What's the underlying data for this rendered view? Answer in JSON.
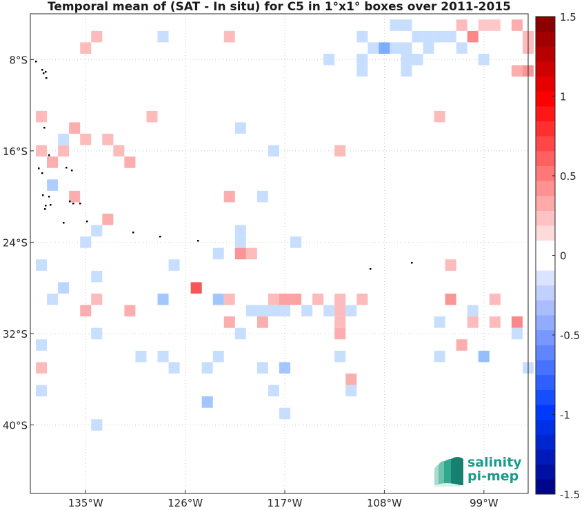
{
  "title": "Temporal mean of (SAT - In situ) for C5 in 1°x1° boxes over 2011-2015",
  "logo": {
    "line1": "salinity",
    "line2": "pi-mep"
  },
  "map": {
    "lon_range": [
      -140,
      -95
    ],
    "lat_range": [
      -46,
      -4
    ],
    "lon_ticks": [
      {
        "v": -135,
        "label": "135°W"
      },
      {
        "v": -126,
        "label": "126°W"
      },
      {
        "v": -117,
        "label": "117°W"
      },
      {
        "v": -108,
        "label": "108°W"
      },
      {
        "v": -99,
        "label": "99°W"
      }
    ],
    "lat_ticks": [
      {
        "v": -8,
        "label": "8°S"
      },
      {
        "v": -16,
        "label": "16°S"
      },
      {
        "v": -24,
        "label": "24°S"
      },
      {
        "v": -32,
        "label": "32°S"
      },
      {
        "v": -40,
        "label": "40°S"
      }
    ],
    "gridlines": true
  },
  "colorbar": {
    "range": [
      -1.5,
      1.5
    ],
    "levels": 32,
    "ticks": [
      "1.5",
      "1",
      "0.5",
      "0",
      "-0.5",
      "-1",
      "-1.5"
    ],
    "tick_values": [
      1.5,
      1,
      0.5,
      0,
      -0.5,
      -1,
      -1.5
    ]
  },
  "chart_data": {
    "type": "heatmap",
    "title": "Temporal mean of (SAT - In situ) for C5 in 1°x1° boxes over 2011-2015",
    "units": "",
    "boxes": [
      {
        "lon": -107,
        "lat": -5,
        "v": -0.1
      },
      {
        "lon": -106,
        "lat": -5,
        "v": -0.1
      },
      {
        "lon": -101,
        "lat": -5,
        "v": 0.15
      },
      {
        "lon": -99,
        "lat": -5,
        "v": 0.1
      },
      {
        "lon": -98,
        "lat": -5,
        "v": 0.1
      },
      {
        "lon": -96,
        "lat": -5,
        "v": 0.2
      },
      {
        "lon": -134,
        "lat": -6,
        "v": 0.15
      },
      {
        "lon": -128,
        "lat": -6,
        "v": -0.1
      },
      {
        "lon": -122,
        "lat": -6,
        "v": 0.15
      },
      {
        "lon": -110,
        "lat": -6,
        "v": -0.1
      },
      {
        "lon": -105,
        "lat": -6,
        "v": -0.1
      },
      {
        "lon": -104,
        "lat": -6,
        "v": -0.1
      },
      {
        "lon": -103,
        "lat": -6,
        "v": -0.1
      },
      {
        "lon": -102,
        "lat": -6,
        "v": -0.1
      },
      {
        "lon": -100,
        "lat": -6,
        "v": 0.35
      },
      {
        "lon": -95,
        "lat": -6,
        "v": 0.15
      },
      {
        "lon": -135,
        "lat": -7,
        "v": 0.15
      },
      {
        "lon": -109,
        "lat": -7,
        "v": -0.1
      },
      {
        "lon": -108,
        "lat": -7,
        "v": -0.4
      },
      {
        "lon": -107,
        "lat": -7,
        "v": -0.1
      },
      {
        "lon": -106,
        "lat": -7,
        "v": -0.1
      },
      {
        "lon": -104,
        "lat": -7,
        "v": -0.1
      },
      {
        "lon": -101,
        "lat": -7,
        "v": -0.1
      },
      {
        "lon": -95,
        "lat": -7,
        "v": 0.15
      },
      {
        "lon": -113,
        "lat": -8,
        "v": -0.1
      },
      {
        "lon": -110,
        "lat": -8,
        "v": -0.1
      },
      {
        "lon": -106,
        "lat": -8,
        "v": -0.1
      },
      {
        "lon": -105,
        "lat": -8,
        "v": -0.1
      },
      {
        "lon": -99,
        "lat": -8,
        "v": -0.1
      },
      {
        "lon": -110,
        "lat": -9,
        "v": -0.1
      },
      {
        "lon": -106,
        "lat": -9,
        "v": -0.1
      },
      {
        "lon": -96,
        "lat": -9,
        "v": 0.2
      },
      {
        "lon": -95,
        "lat": -9,
        "v": 0.3
      },
      {
        "lon": -139,
        "lat": -13,
        "v": 0.15
      },
      {
        "lon": -129,
        "lat": -13,
        "v": 0.15
      },
      {
        "lon": -103,
        "lat": -13,
        "v": 0.15
      },
      {
        "lon": -136,
        "lat": -14,
        "v": 0.2
      },
      {
        "lon": -121,
        "lat": -14,
        "v": -0.1
      },
      {
        "lon": -137,
        "lat": -15,
        "v": -0.1
      },
      {
        "lon": -135,
        "lat": -15,
        "v": 0.15
      },
      {
        "lon": -133,
        "lat": -15,
        "v": 0.15
      },
      {
        "lon": -139,
        "lat": -16,
        "v": 0.15
      },
      {
        "lon": -137,
        "lat": -16,
        "v": 0.15
      },
      {
        "lon": -132,
        "lat": -16,
        "v": 0.15
      },
      {
        "lon": -118,
        "lat": -16,
        "v": -0.1
      },
      {
        "lon": -112,
        "lat": -16,
        "v": 0.15
      },
      {
        "lon": -138,
        "lat": -17,
        "v": 0.2
      },
      {
        "lon": -131,
        "lat": -17,
        "v": 0.2
      },
      {
        "lon": -138,
        "lat": -19,
        "v": -0.2
      },
      {
        "lon": -136,
        "lat": -20,
        "v": 0.2
      },
      {
        "lon": -122,
        "lat": -20,
        "v": 0.2
      },
      {
        "lon": -119,
        "lat": -20,
        "v": -0.1
      },
      {
        "lon": -133,
        "lat": -22,
        "v": 0.2
      },
      {
        "lon": -134,
        "lat": -23,
        "v": -0.1
      },
      {
        "lon": -121,
        "lat": -23,
        "v": -0.1
      },
      {
        "lon": -135,
        "lat": -24,
        "v": -0.1
      },
      {
        "lon": -121,
        "lat": -24,
        "v": -0.1
      },
      {
        "lon": -116,
        "lat": -24,
        "v": -0.1
      },
      {
        "lon": -123,
        "lat": -25,
        "v": -0.1
      },
      {
        "lon": -121,
        "lat": -25,
        "v": 0.3
      },
      {
        "lon": -120,
        "lat": -25,
        "v": 0.15
      },
      {
        "lon": -139,
        "lat": -26,
        "v": -0.1
      },
      {
        "lon": -127,
        "lat": -26,
        "v": -0.1
      },
      {
        "lon": -102,
        "lat": -26,
        "v": 0.15
      },
      {
        "lon": -134,
        "lat": -27,
        "v": -0.1
      },
      {
        "lon": -137,
        "lat": -28,
        "v": -0.15
      },
      {
        "lon": -125,
        "lat": -28,
        "v": 0.55
      },
      {
        "lon": -138,
        "lat": -29,
        "v": -0.1
      },
      {
        "lon": -134,
        "lat": -29,
        "v": 0.15
      },
      {
        "lon": -128,
        "lat": -29,
        "v": -0.25
      },
      {
        "lon": -123,
        "lat": -29,
        "v": -0.25
      },
      {
        "lon": -122,
        "lat": -29,
        "v": 0.15
      },
      {
        "lon": -118,
        "lat": -29,
        "v": 0.15
      },
      {
        "lon": -117,
        "lat": -29,
        "v": 0.25
      },
      {
        "lon": -116,
        "lat": -29,
        "v": 0.25
      },
      {
        "lon": -114,
        "lat": -29,
        "v": 0.15
      },
      {
        "lon": -112,
        "lat": -29,
        "v": 0.15
      },
      {
        "lon": -110,
        "lat": -29,
        "v": 0.15
      },
      {
        "lon": -102,
        "lat": -29,
        "v": 0.3
      },
      {
        "lon": -98,
        "lat": -29,
        "v": 0.15
      },
      {
        "lon": -135,
        "lat": -30,
        "v": 0.2
      },
      {
        "lon": -131,
        "lat": -30,
        "v": 0.2
      },
      {
        "lon": -120,
        "lat": -30,
        "v": -0.1
      },
      {
        "lon": -119,
        "lat": -30,
        "v": -0.1
      },
      {
        "lon": -118,
        "lat": -30,
        "v": -0.1
      },
      {
        "lon": -117,
        "lat": -30,
        "v": -0.1
      },
      {
        "lon": -115,
        "lat": -30,
        "v": -0.1
      },
      {
        "lon": -113,
        "lat": -30,
        "v": -0.1
      },
      {
        "lon": -112,
        "lat": -30,
        "v": 0.15
      },
      {
        "lon": -111,
        "lat": -30,
        "v": -0.1
      },
      {
        "lon": -100,
        "lat": -30,
        "v": -0.1
      },
      {
        "lon": -122,
        "lat": -31,
        "v": 0.2
      },
      {
        "lon": -119,
        "lat": -31,
        "v": 0.2
      },
      {
        "lon": -112,
        "lat": -31,
        "v": 0.15
      },
      {
        "lon": -103,
        "lat": -31,
        "v": -0.1
      },
      {
        "lon": -100,
        "lat": -31,
        "v": 0.15
      },
      {
        "lon": -98,
        "lat": -31,
        "v": 0.15
      },
      {
        "lon": -96,
        "lat": -31,
        "v": 0.35
      },
      {
        "lon": -134,
        "lat": -32,
        "v": -0.1
      },
      {
        "lon": -121,
        "lat": -32,
        "v": -0.1
      },
      {
        "lon": -112,
        "lat": -32,
        "v": 0.2
      },
      {
        "lon": -96,
        "lat": -32,
        "v": -0.1
      },
      {
        "lon": -139,
        "lat": -33,
        "v": -0.1
      },
      {
        "lon": -101,
        "lat": -33,
        "v": 0.2
      },
      {
        "lon": -130,
        "lat": -34,
        "v": -0.1
      },
      {
        "lon": -128,
        "lat": -34,
        "v": -0.1
      },
      {
        "lon": -123,
        "lat": -34,
        "v": -0.1
      },
      {
        "lon": -112,
        "lat": -34,
        "v": -0.1
      },
      {
        "lon": -103,
        "lat": -34,
        "v": -0.1
      },
      {
        "lon": -99,
        "lat": -34,
        "v": -0.3
      },
      {
        "lon": -139,
        "lat": -35,
        "v": 0.15
      },
      {
        "lon": -127,
        "lat": -35,
        "v": -0.1
      },
      {
        "lon": -124,
        "lat": -35,
        "v": -0.1
      },
      {
        "lon": -119,
        "lat": -35,
        "v": -0.1
      },
      {
        "lon": -117,
        "lat": -35,
        "v": -0.25
      },
      {
        "lon": -95,
        "lat": -35,
        "v": -0.1
      },
      {
        "lon": -111,
        "lat": -36,
        "v": 0.2
      },
      {
        "lon": -139,
        "lat": -37,
        "v": -0.1
      },
      {
        "lon": -118,
        "lat": -37,
        "v": -0.1
      },
      {
        "lon": -111,
        "lat": -37,
        "v": -0.1
      },
      {
        "lon": -124,
        "lat": -38,
        "v": -0.25
      },
      {
        "lon": -117,
        "lat": -39,
        "v": -0.1
      },
      {
        "lon": -134,
        "lat": -40,
        "v": -0.1
      }
    ]
  }
}
